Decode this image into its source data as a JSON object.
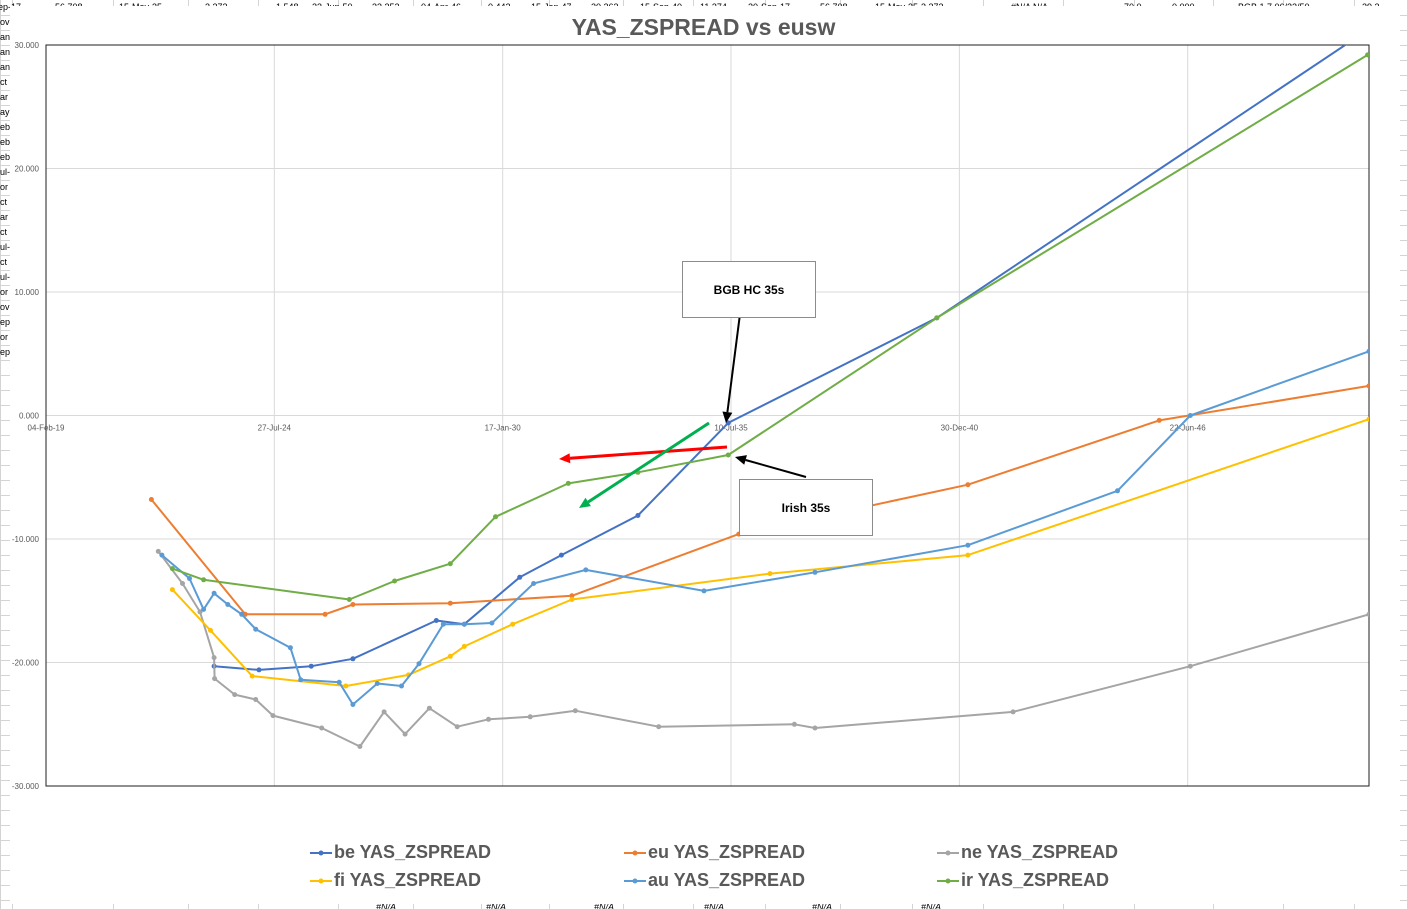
{
  "sheet": {
    "top_row_cells": [
      "ep-17",
      "56.708",
      "15-May-35",
      "3.373",
      "1.548",
      "23-Jun-50",
      "33.352",
      "04-Apr-46",
      "0.442",
      "15-Jan-47",
      "20.263",
      "15-Sep-40",
      "11.374",
      "20-Sep-17",
      "56.708",
      "15-May-35",
      "3.373",
      "#N/A N/A",
      "70.0",
      "0.000",
      "BGB 1.7 06/22/50",
      "29.3"
    ],
    "left_column_labels": [
      "ov",
      "an",
      "an",
      "an",
      "ct",
      "ar",
      "ay",
      "eb",
      "eb",
      "eb",
      "ul-",
      "or",
      "ct",
      "ar",
      "ct",
      "ul-",
      "ct",
      "ul-",
      "or",
      "ov",
      "ep",
      "or",
      "ep"
    ],
    "bottom_row_cells": [
      "#N/A",
      "#N/A",
      "#N/A",
      "#N/A",
      "#N/A",
      "#N/A"
    ]
  },
  "chart_data": {
    "type": "line",
    "title": "YAS_ZSPREAD vs eusw",
    "x_tick_labels": [
      "04-Feb-19",
      "27-Jul-24",
      "17-Jan-30",
      "10-Jul-35",
      "30-Dec-40",
      "22-Jun-46"
    ],
    "y_tick_labels": [
      "30.000",
      "20.000",
      "10.000",
      "0.000",
      "-10.000",
      "-20.000",
      "-30.000"
    ],
    "xlim": [
      "2019-02-04",
      "2050-10-27"
    ],
    "ylim": [
      -30,
      30
    ],
    "grid": true,
    "legend_position": "bottom",
    "series": [
      {
        "name": "be YAS_ZSPREAD",
        "color": "#4472C4",
        "points": [
          [
            "2023-02-15",
            -20.3
          ],
          [
            "2024-03-15",
            -20.6
          ],
          [
            "2025-06-15",
            -20.3
          ],
          [
            "2026-06-15",
            -19.7
          ],
          [
            "2028-06-15",
            -16.6
          ],
          [
            "2029-02-15",
            -16.9
          ],
          [
            "2030-06-15",
            -13.1
          ],
          [
            "2031-06-15",
            -11.3
          ],
          [
            "2033-04-15",
            -8.1
          ],
          [
            "2035-06-15",
            -0.6
          ],
          [
            "2040-06-15",
            7.9
          ],
          [
            "2050-06-22",
            30.5
          ]
        ]
      },
      {
        "name": "eu YAS_ZSPREAD",
        "color": "#ED7D31",
        "points": [
          [
            "2021-08-15",
            -6.8
          ],
          [
            "2023-11-15",
            -16.1
          ],
          [
            "2025-10-15",
            -16.1
          ],
          [
            "2026-06-15",
            -15.3
          ],
          [
            "2028-10-15",
            -15.2
          ],
          [
            "2031-09-15",
            -14.6
          ],
          [
            "2035-09-15",
            -9.6
          ],
          [
            "2041-03-15",
            -5.6
          ],
          [
            "2045-10-15",
            -0.4
          ],
          [
            "2050-10-27",
            2.4
          ]
        ]
      },
      {
        "name": "ne YAS_ZSPREAD",
        "color": "#A5A5A5",
        "points": [
          [
            "2021-10-15",
            -11.0
          ],
          [
            "2022-05-15",
            -13.6
          ],
          [
            "2022-10-15",
            -15.9
          ],
          [
            "2023-02-15",
            -19.6
          ],
          [
            "2023-02-20",
            -21.3
          ],
          [
            "2023-08-15",
            -22.6
          ],
          [
            "2024-02-15",
            -23.0
          ],
          [
            "2024-07-15",
            -24.3
          ],
          [
            "2025-09-15",
            -25.3
          ],
          [
            "2026-08-15",
            -26.8
          ],
          [
            "2027-03-15",
            -24.0
          ],
          [
            "2027-09-15",
            -25.8
          ],
          [
            "2028-04-15",
            -23.7
          ],
          [
            "2028-12-15",
            -25.2
          ],
          [
            "2029-09-15",
            -24.6
          ],
          [
            "2030-09-15",
            -24.4
          ],
          [
            "2031-10-15",
            -23.9
          ],
          [
            "2033-10-15",
            -25.2
          ],
          [
            "2037-01-15",
            -25.0
          ],
          [
            "2037-07-15",
            -25.3
          ],
          [
            "2042-04-15",
            -24.0
          ],
          [
            "2046-07-15",
            -20.3
          ],
          [
            "2050-10-27",
            -16.1
          ]
        ]
      },
      {
        "name": "fi YAS_ZSPREAD",
        "color": "#FFC000",
        "points": [
          [
            "2022-02-15",
            -14.1
          ],
          [
            "2023-01-15",
            -17.4
          ],
          [
            "2024-01-15",
            -21.1
          ],
          [
            "2026-04-15",
            -21.9
          ],
          [
            "2027-10-15",
            -21.0
          ],
          [
            "2028-10-15",
            -19.5
          ],
          [
            "2029-02-15",
            -18.7
          ],
          [
            "2030-04-15",
            -16.9
          ],
          [
            "2031-09-15",
            -14.9
          ],
          [
            "2036-06-15",
            -12.8
          ],
          [
            "2041-03-15",
            -11.3
          ],
          [
            "2050-10-27",
            -0.3
          ]
        ]
      },
      {
        "name": "au YAS_ZSPREAD",
        "color": "#5B9BD5",
        "points": [
          [
            "2021-11-15",
            -11.3
          ],
          [
            "2022-07-15",
            -13.2
          ],
          [
            "2022-11-15",
            -15.7
          ],
          [
            "2023-02-15",
            -14.4
          ],
          [
            "2023-06-15",
            -15.3
          ],
          [
            "2023-10-15",
            -16.1
          ],
          [
            "2024-02-15",
            -17.3
          ],
          [
            "2024-12-15",
            -18.8
          ],
          [
            "2025-03-15",
            -21.4
          ],
          [
            "2026-02-15",
            -21.6
          ],
          [
            "2026-06-15",
            -23.4
          ],
          [
            "2027-01-15",
            -21.7
          ],
          [
            "2027-08-15",
            -21.9
          ],
          [
            "2028-01-15",
            -20.1
          ],
          [
            "2028-08-15",
            -16.9
          ],
          [
            "2029-02-15",
            -16.9
          ],
          [
            "2029-10-15",
            -16.8
          ],
          [
            "2030-10-15",
            -13.6
          ],
          [
            "2032-01-15",
            -12.5
          ],
          [
            "2034-11-15",
            -14.2
          ],
          [
            "2037-07-15",
            -12.7
          ],
          [
            "2041-03-15",
            -10.5
          ],
          [
            "2044-10-15",
            -6.1
          ],
          [
            "2046-07-15",
            0.0
          ],
          [
            "2050-10-27",
            5.2
          ]
        ]
      },
      {
        "name": "ir YAS_ZSPREAD",
        "color": "#70AD47",
        "points": [
          [
            "2022-02-15",
            -12.4
          ],
          [
            "2022-11-15",
            -13.3
          ],
          [
            "2026-05-15",
            -14.9
          ],
          [
            "2027-06-15",
            -13.4
          ],
          [
            "2028-10-15",
            -12.0
          ],
          [
            "2029-11-15",
            -8.2
          ],
          [
            "2031-08-15",
            -5.5
          ],
          [
            "2033-04-15",
            -4.6
          ],
          [
            "2035-06-15",
            -3.2
          ],
          [
            "2040-06-15",
            7.9
          ],
          [
            "2050-10-15",
            29.2
          ]
        ]
      }
    ],
    "annotations": [
      {
        "text": "BGB HC 35s"
      },
      {
        "text": "Irish 35s"
      }
    ]
  }
}
